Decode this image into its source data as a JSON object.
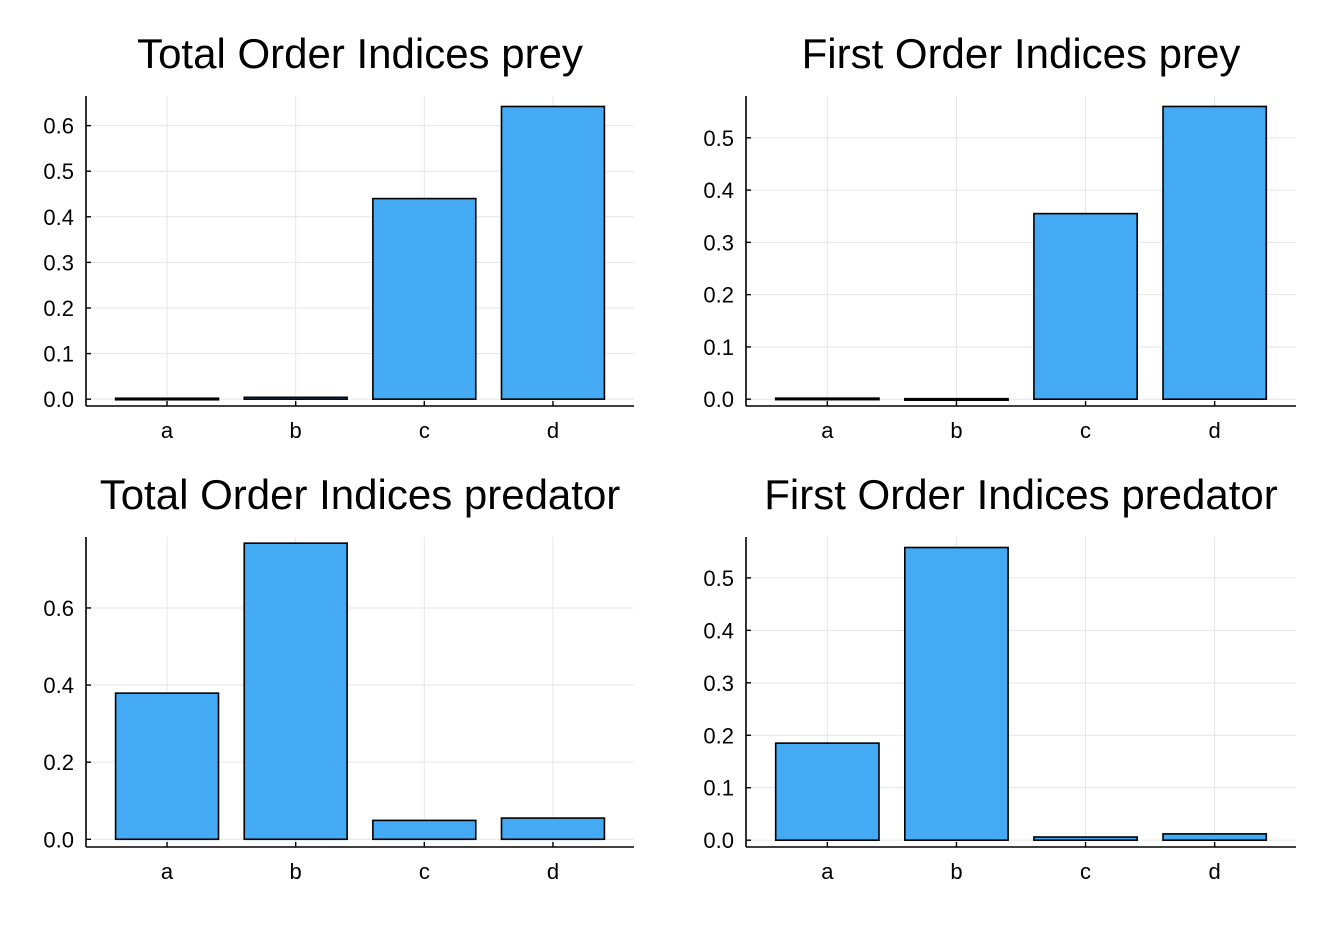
{
  "chart_data": [
    {
      "type": "bar",
      "title": "Total Order Indices prey",
      "categories": [
        "a",
        "b",
        "c",
        "d"
      ],
      "values": [
        0.002,
        0.004,
        0.44,
        0.642
      ],
      "yticks": [
        "0.0",
        "0.1",
        "0.2",
        "0.3",
        "0.4",
        "0.5",
        "0.6"
      ],
      "ylim": [
        -0.015,
        0.665
      ],
      "grid": true,
      "bar_color": "#44aaf3"
    },
    {
      "type": "bar",
      "title": "First Order Indices prey",
      "categories": [
        "a",
        "b",
        "c",
        "d"
      ],
      "values": [
        0.002,
        0.001,
        0.355,
        0.56
      ],
      "yticks": [
        "0.0",
        "0.1",
        "0.2",
        "0.3",
        "0.4",
        "0.5"
      ],
      "ylim": [
        -0.013,
        0.58
      ],
      "grid": true,
      "bar_color": "#44aaf3"
    },
    {
      "type": "bar",
      "title": "Total Order Indices predator",
      "categories": [
        "a",
        "b",
        "c",
        "d"
      ],
      "values": [
        0.379,
        0.768,
        0.049,
        0.055
      ],
      "yticks": [
        "0.0",
        "0.2",
        "0.4",
        "0.6"
      ],
      "ylim": [
        -0.02,
        0.784
      ],
      "grid": true,
      "bar_color": "#44aaf3"
    },
    {
      "type": "bar",
      "title": "First Order Indices predator",
      "categories": [
        "a",
        "b",
        "c",
        "d"
      ],
      "values": [
        0.185,
        0.558,
        0.006,
        0.012
      ],
      "yticks": [
        "0.0",
        "0.1",
        "0.2",
        "0.3",
        "0.4",
        "0.5"
      ],
      "ylim": [
        -0.013,
        0.578
      ],
      "grid": true,
      "bar_color": "#44aaf3"
    }
  ]
}
